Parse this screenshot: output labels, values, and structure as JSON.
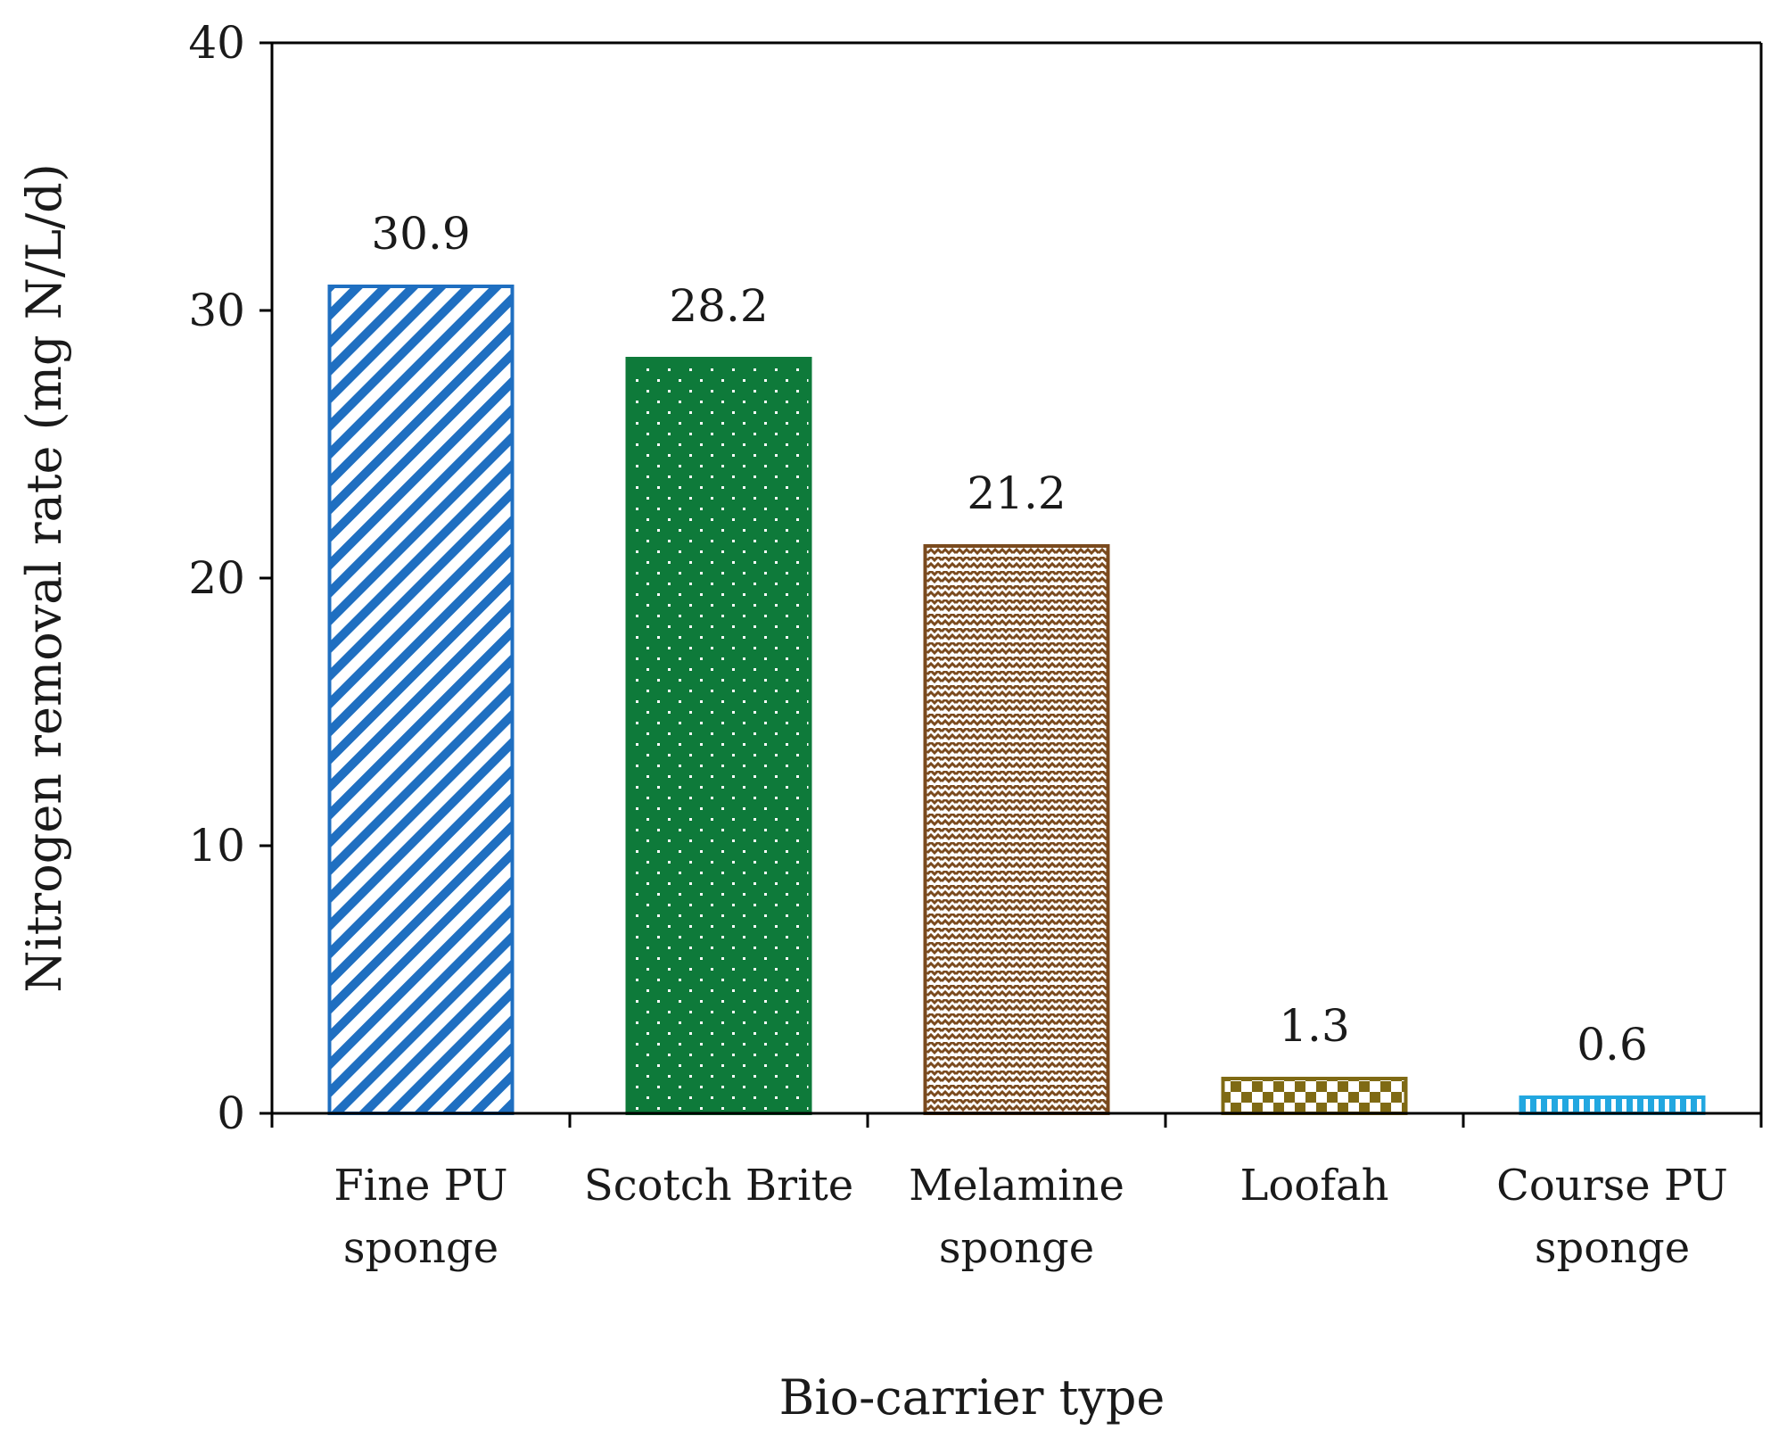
{
  "chart_data": {
    "type": "bar",
    "title": "",
    "xlabel": "Bio-carrier type",
    "ylabel": "Nitrogen removal rate (mg N/L/d)",
    "ylim": [
      0,
      40
    ],
    "yticks": [
      0,
      10,
      20,
      30,
      40
    ],
    "grid": false,
    "legend": "none",
    "categories": [
      [
        "Fine PU",
        "sponge"
      ],
      [
        "Scotch Brite"
      ],
      [
        "Melamine",
        "sponge"
      ],
      [
        "Loofah"
      ],
      [
        "Course PU",
        "sponge"
      ]
    ],
    "values": [
      30.9,
      28.2,
      21.2,
      1.3,
      0.6
    ],
    "data_labels": [
      "30.9",
      "28.2",
      "21.2",
      "1.3",
      "0.6"
    ],
    "bar_styles": [
      {
        "pattern": "diagonal-stripes",
        "color": "#1f6fc1"
      },
      {
        "pattern": "dots",
        "color": "#0e7a3a"
      },
      {
        "pattern": "weave",
        "color": "#7a4a1e"
      },
      {
        "pattern": "checker",
        "color": "#7f6a14"
      },
      {
        "pattern": "vertical-stripes",
        "color": "#22a7e0"
      }
    ]
  }
}
